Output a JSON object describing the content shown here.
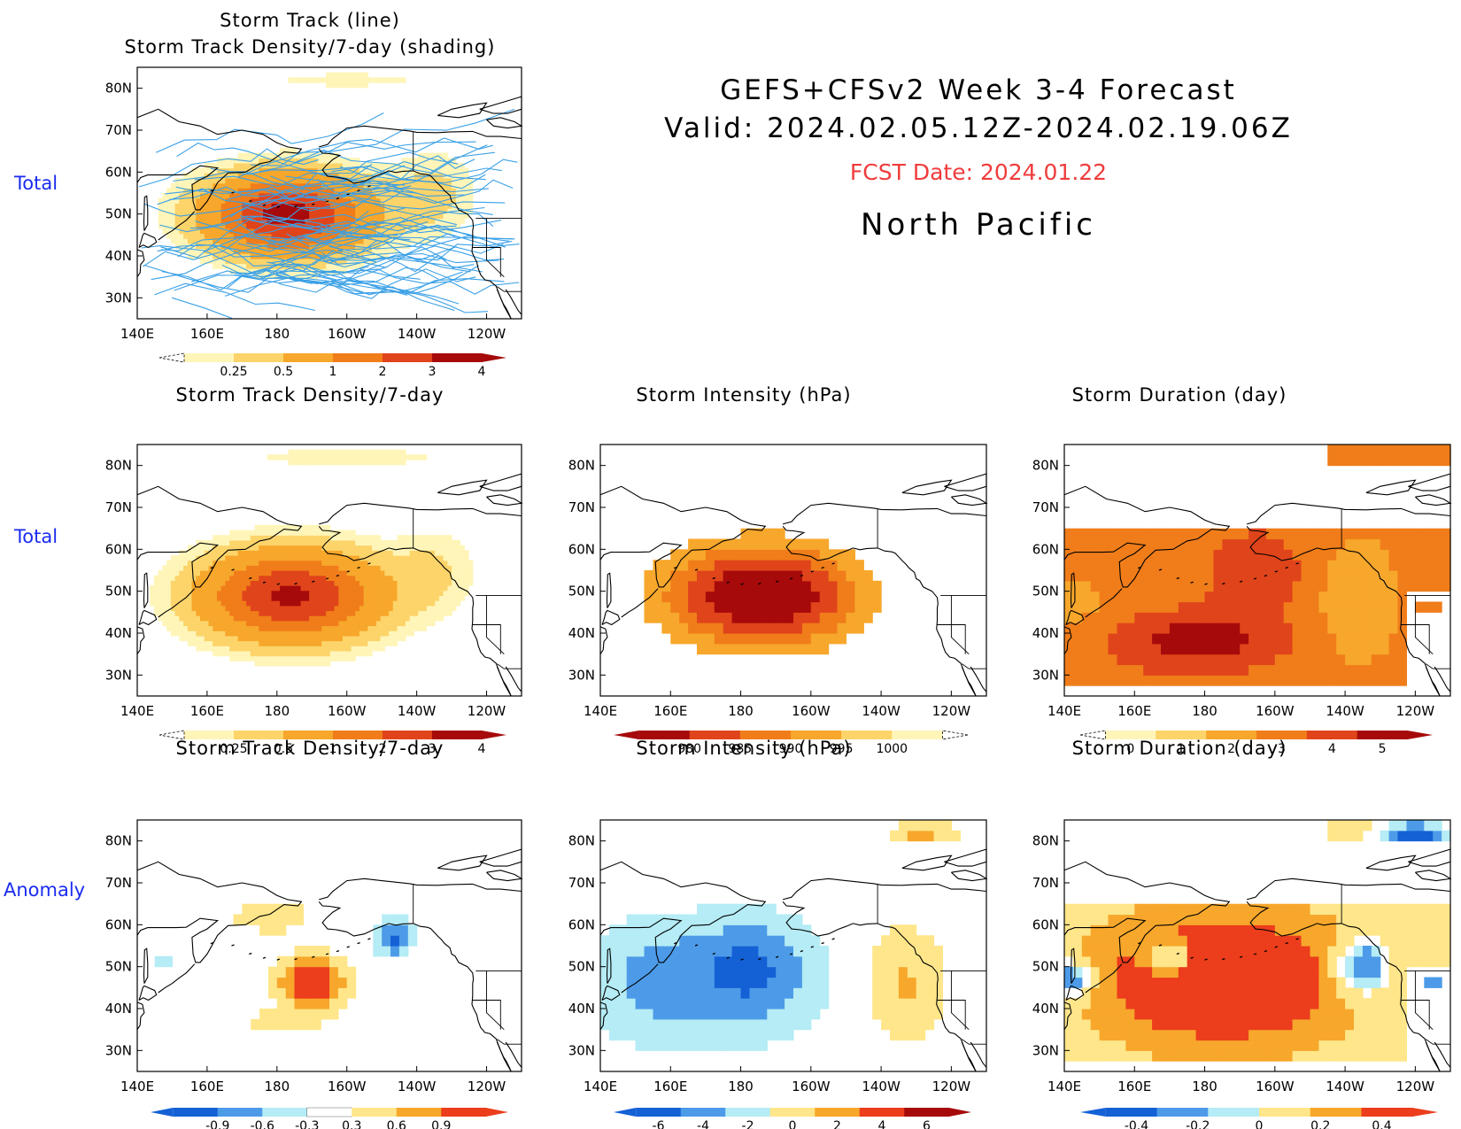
{
  "header": {
    "title_line1": "GEFS+CFSv2  Week  3-4  Forecast",
    "title_line2": "Valid:  2024.02.05.12Z-2024.02.19.06Z",
    "fcst_date": "FCST Date: 2024.01.22",
    "region": "North  Pacific"
  },
  "row_labels": [
    "Total",
    "Total",
    "Anomaly"
  ],
  "axes": {
    "lon_ticks": [
      "140E",
      "160E",
      "180",
      "160W",
      "140W",
      "120W"
    ],
    "lat_ticks": [
      "80N",
      "70N",
      "60N",
      "50N",
      "40N",
      "30N"
    ]
  },
  "panels": [
    {
      "title": "Storm Track (line)\nStorm Track Density/7-day (shading)",
      "colorbar": [
        "0.25",
        "0.5",
        "1",
        "2",
        "3",
        "4"
      ]
    },
    {
      "title": "Storm Track Density/7-day",
      "colorbar": [
        "0.25",
        "0.5",
        "1",
        "2",
        "3",
        "4"
      ]
    },
    {
      "title": "Storm Intensity (hPa)",
      "colorbar": [
        "980",
        "985",
        "990",
        "995",
        "1000"
      ]
    },
    {
      "title": "Storm Duration (day)",
      "colorbar": [
        "0",
        "1",
        "2",
        "3",
        "4",
        "5"
      ]
    },
    {
      "title": "Storm Track Density/7-day",
      "colorbar": [
        "-0.9",
        "-0.6",
        "-0.3",
        "0.3",
        "0.6",
        "0.9"
      ]
    },
    {
      "title": "Storm Intensity (hPa)",
      "colorbar": [
        "-6",
        "-4",
        "-2",
        "0",
        "2",
        "4",
        "6"
      ]
    },
    {
      "title": "Storm Duration (day)",
      "colorbar": [
        "-0.4",
        "-0.2",
        "0",
        "0.2",
        "0.4"
      ]
    }
  ],
  "chart_data": [
    {
      "type": "heatmap",
      "title": "Storm Track (line) / Storm Track Density/7-day (shading)",
      "xlim": [
        "140E",
        "110W"
      ],
      "ylim": [
        "25N",
        "85N"
      ],
      "colorbar_levels": [
        0.25,
        0.5,
        1,
        2,
        3,
        4
      ],
      "colors": [
        "#fff5b8",
        "#fcd46a",
        "#f7a72b",
        "#f07d1a",
        "#e0441a",
        "#a60a0a"
      ],
      "field": {
        "center_lon": 183,
        "center_lat": 50,
        "peak": 4.2,
        "overlay_lines": "storm tracks (blue)"
      },
      "line_color": "#3aa0e6"
    },
    {
      "type": "heatmap",
      "title": "Storm Track Density/7-day",
      "xlim": [
        "140E",
        "110W"
      ],
      "ylim": [
        "25N",
        "85N"
      ],
      "colorbar_levels": [
        0.25,
        0.5,
        1,
        2,
        3,
        4
      ],
      "colors": [
        "#fff5b8",
        "#fcd46a",
        "#f7a72b",
        "#f07d1a",
        "#e0441a",
        "#a60a0a"
      ],
      "field": {
        "center_lon": 183,
        "center_lat": 49,
        "peak": 4.0
      }
    },
    {
      "type": "heatmap",
      "title": "Storm Intensity (hPa)",
      "xlim": [
        "140E",
        "110W"
      ],
      "ylim": [
        "25N",
        "85N"
      ],
      "colorbar_levels": [
        980,
        985,
        990,
        995,
        1000
      ],
      "colors": [
        "#a60a0a",
        "#e0441a",
        "#f07d1a",
        "#f7a72b",
        "#fcd46a",
        "#fff5b8"
      ],
      "field": {
        "center_lon": 185,
        "center_lat": 49,
        "minimum": 980
      }
    },
    {
      "type": "heatmap",
      "title": "Storm Duration (day)",
      "xlim": [
        "140E",
        "110W"
      ],
      "ylim": [
        "25N",
        "85N"
      ],
      "colorbar_levels": [
        0,
        1,
        2,
        3,
        4,
        5
      ],
      "colors": [
        "#fff5b8",
        "#fcd46a",
        "#f7a72b",
        "#f07d1a",
        "#e0441a",
        "#a60a0a"
      ],
      "field": {
        "typical": 3.5,
        "max": 5
      }
    },
    {
      "type": "heatmap",
      "title": "Storm Track Density/7-day (anomaly)",
      "xlim": [
        "140E",
        "110W"
      ],
      "ylim": [
        "25N",
        "85N"
      ],
      "colorbar_levels": [
        -0.9,
        -0.6,
        -0.3,
        0.3,
        0.6,
        0.9
      ],
      "colors": [
        "#1461d6",
        "#4d9be8",
        "#b5ecf5",
        "#ffffff",
        "#ffe68a",
        "#f7a72b",
        "#ec3d1c"
      ],
      "field": {
        "positive_center": [
          "172W",
          "45N"
        ],
        "negative_center": [
          "148W",
          "60N"
        ]
      }
    },
    {
      "type": "heatmap",
      "title": "Storm Intensity (hPa) (anomaly)",
      "xlim": [
        "140E",
        "110W"
      ],
      "ylim": [
        "25N",
        "85N"
      ],
      "colorbar_levels": [
        -6,
        -4,
        -2,
        0,
        2,
        4,
        6
      ],
      "colors": [
        "#1461d6",
        "#4d9be8",
        "#b5ecf5",
        "#ffe68a",
        "#f7a72b",
        "#ec3d1c",
        "#a60a0a"
      ],
      "field": {
        "negative_center": [
          "178E",
          "50N"
        ],
        "positive_region": [
          "140W",
          "45N"
        ]
      }
    },
    {
      "type": "heatmap",
      "title": "Storm Duration (day) (anomaly)",
      "xlim": [
        "140E",
        "110W"
      ],
      "ylim": [
        "25N",
        "85N"
      ],
      "colorbar_levels": [
        -0.4,
        -0.2,
        0,
        0.2,
        0.4
      ],
      "colors": [
        "#1461d6",
        "#4d9be8",
        "#b5ecf5",
        "#ffe68a",
        "#f7a72b",
        "#ec3d1c"
      ],
      "field": {
        "positive_broad": true,
        "negative_center": [
          "145W",
          "50N"
        ]
      }
    }
  ]
}
